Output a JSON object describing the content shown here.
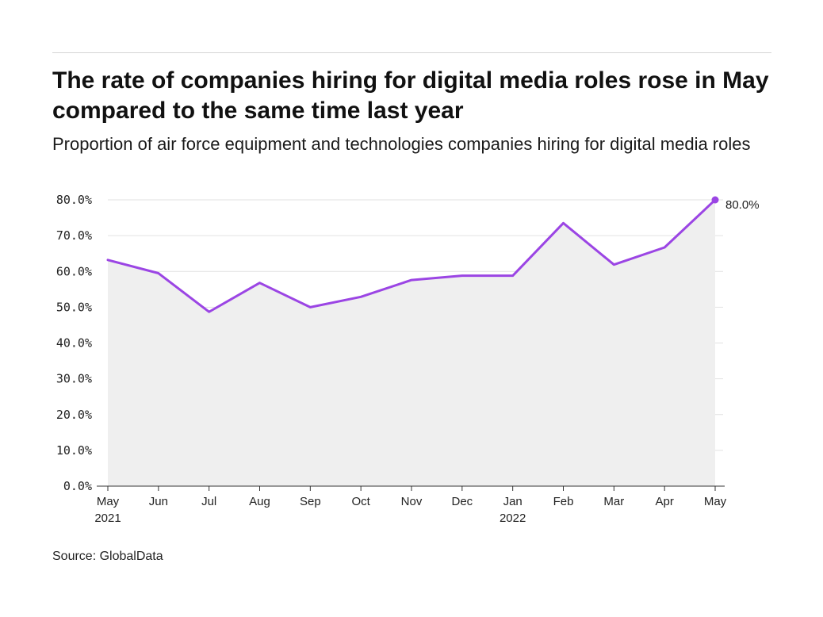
{
  "title": "The rate of companies hiring for digital media roles rose in May compared to the same time last year",
  "subtitle": "Proportion of air force equipment and technologies companies hiring for digital media roles",
  "source": "Source: GlobalData",
  "colors": {
    "line": "#9b45e4",
    "area": "#efefef",
    "grid": "#e2e2e2",
    "axis": "#333333"
  },
  "chart_data": {
    "type": "area",
    "x_ticks": [
      [
        "May",
        "2021"
      ],
      [
        "Jun"
      ],
      [
        "Jul"
      ],
      [
        "Aug"
      ],
      [
        "Sep"
      ],
      [
        "Oct"
      ],
      [
        "Nov"
      ],
      [
        "Dec"
      ],
      [
        "Jan",
        "2022"
      ],
      [
        "Feb"
      ],
      [
        "Mar"
      ],
      [
        "Apr"
      ],
      [
        "May"
      ]
    ],
    "categories": [
      "May 2021",
      "Jun 2021",
      "Jul 2021",
      "Aug 2021",
      "Sep 2021",
      "Oct 2021",
      "Nov 2021",
      "Dec 2021",
      "Jan 2022",
      "Feb 2022",
      "Mar 2022",
      "Apr 2022",
      "May 2022"
    ],
    "series": [
      {
        "values": [
          63.2,
          59.5,
          48.7,
          56.8,
          50.0,
          52.9,
          57.6,
          58.8,
          58.8,
          73.5,
          61.9,
          66.7,
          80.0
        ]
      }
    ],
    "y_ticks": [
      "0.0%",
      "10.0%",
      "20.0%",
      "30.0%",
      "40.0%",
      "50.0%",
      "60.0%",
      "70.0%",
      "80.0%"
    ],
    "ylim": [
      0,
      80
    ],
    "grid": true,
    "end_label": "80.0%",
    "xlabel": "",
    "ylabel": ""
  }
}
